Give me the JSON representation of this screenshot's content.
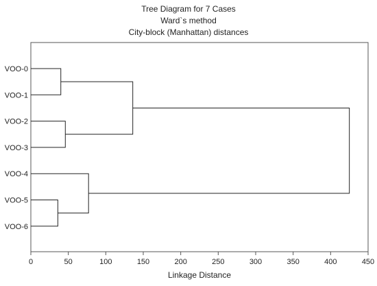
{
  "chart_data": {
    "type": "dendrogram",
    "title_lines": [
      "Tree Diagram for 7 Cases",
      "Ward`s method",
      "City-block (Manhattan) distances"
    ],
    "xlabel": "Linkage Distance",
    "xlim": [
      0,
      450
    ],
    "xticks": [
      0,
      50,
      100,
      150,
      200,
      250,
      300,
      350,
      400,
      450
    ],
    "cases": [
      "VOO-0",
      "VOO-1",
      "VOO-2",
      "VOO-3",
      "VOO-4",
      "VOO-5",
      "VOO-6"
    ],
    "clusters": [
      {
        "id": "c1",
        "members": [
          "VOO-0",
          "VOO-1"
        ],
        "distance": 40
      },
      {
        "id": "c2",
        "members": [
          "VOO-2",
          "VOO-3"
        ],
        "distance": 46
      },
      {
        "id": "c3",
        "members": [
          "VOO-5",
          "VOO-6"
        ],
        "distance": 36
      },
      {
        "id": "c4",
        "members": [
          "VOO-4",
          "c3"
        ],
        "distance": 77
      },
      {
        "id": "c5",
        "members": [
          "c1",
          "c2"
        ],
        "distance": 136
      },
      {
        "id": "c6",
        "members": [
          "c5",
          "c4"
        ],
        "distance": 425
      }
    ],
    "grid": false,
    "legend": "none"
  }
}
